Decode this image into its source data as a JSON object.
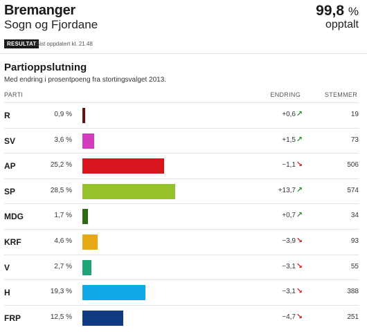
{
  "header": {
    "title": "Bremanger",
    "region": "Sogn og Fjordane",
    "counted_pct": "99,8",
    "counted_unit": "%",
    "counted_label": "opptalt",
    "badge": "RESULTAT",
    "updated": "Sist oppdatert kl. 21.48"
  },
  "section": {
    "title": "Partioppslutning",
    "subtitle": "Med endring i prosentpoeng fra stortingsvalget 2013."
  },
  "table": {
    "col_parti": "PARTI",
    "col_endring": "ENDRING",
    "col_stemmer": "STEMMER",
    "rows": [
      {
        "party": "R",
        "share": "0,9 %",
        "share_value": 0.9,
        "change": "+0,6",
        "direction": "up",
        "votes": "19",
        "color": "#6b0f0f"
      },
      {
        "party": "SV",
        "share": "3,6 %",
        "share_value": 3.6,
        "change": "+1,5",
        "direction": "up",
        "votes": "73",
        "color": "#d43cc0"
      },
      {
        "party": "AP",
        "share": "25,2 %",
        "share_value": 25.2,
        "change": "−1,1",
        "direction": "down",
        "votes": "506",
        "color": "#d9151f"
      },
      {
        "party": "SP",
        "share": "28,5 %",
        "share_value": 28.5,
        "change": "+13,7",
        "direction": "up",
        "votes": "574",
        "color": "#95c12a"
      },
      {
        "party": "MDG",
        "share": "1,7 %",
        "share_value": 1.7,
        "change": "+0,7",
        "direction": "up",
        "votes": "34",
        "color": "#2e6a13"
      },
      {
        "party": "KRF",
        "share": "4,6 %",
        "share_value": 4.6,
        "change": "−3,9",
        "direction": "down",
        "votes": "93",
        "color": "#e8aa12"
      },
      {
        "party": "V",
        "share": "2,7 %",
        "share_value": 2.7,
        "change": "−3,1",
        "direction": "down",
        "votes": "55",
        "color": "#21a37a"
      },
      {
        "party": "H",
        "share": "19,3 %",
        "share_value": 19.3,
        "change": "−3,1",
        "direction": "down",
        "votes": "388",
        "color": "#10a9e6"
      },
      {
        "party": "FRP",
        "share": "12,5 %",
        "share_value": 12.5,
        "change": "−4,7",
        "direction": "down",
        "votes": "251",
        "color": "#0d3a80"
      }
    ]
  },
  "arrow_colors": {
    "up": "#2e8b2e",
    "down": "#d42020"
  },
  "icons": {
    "up": "arrow-up-right-icon",
    "down": "arrow-down-right-icon"
  }
}
